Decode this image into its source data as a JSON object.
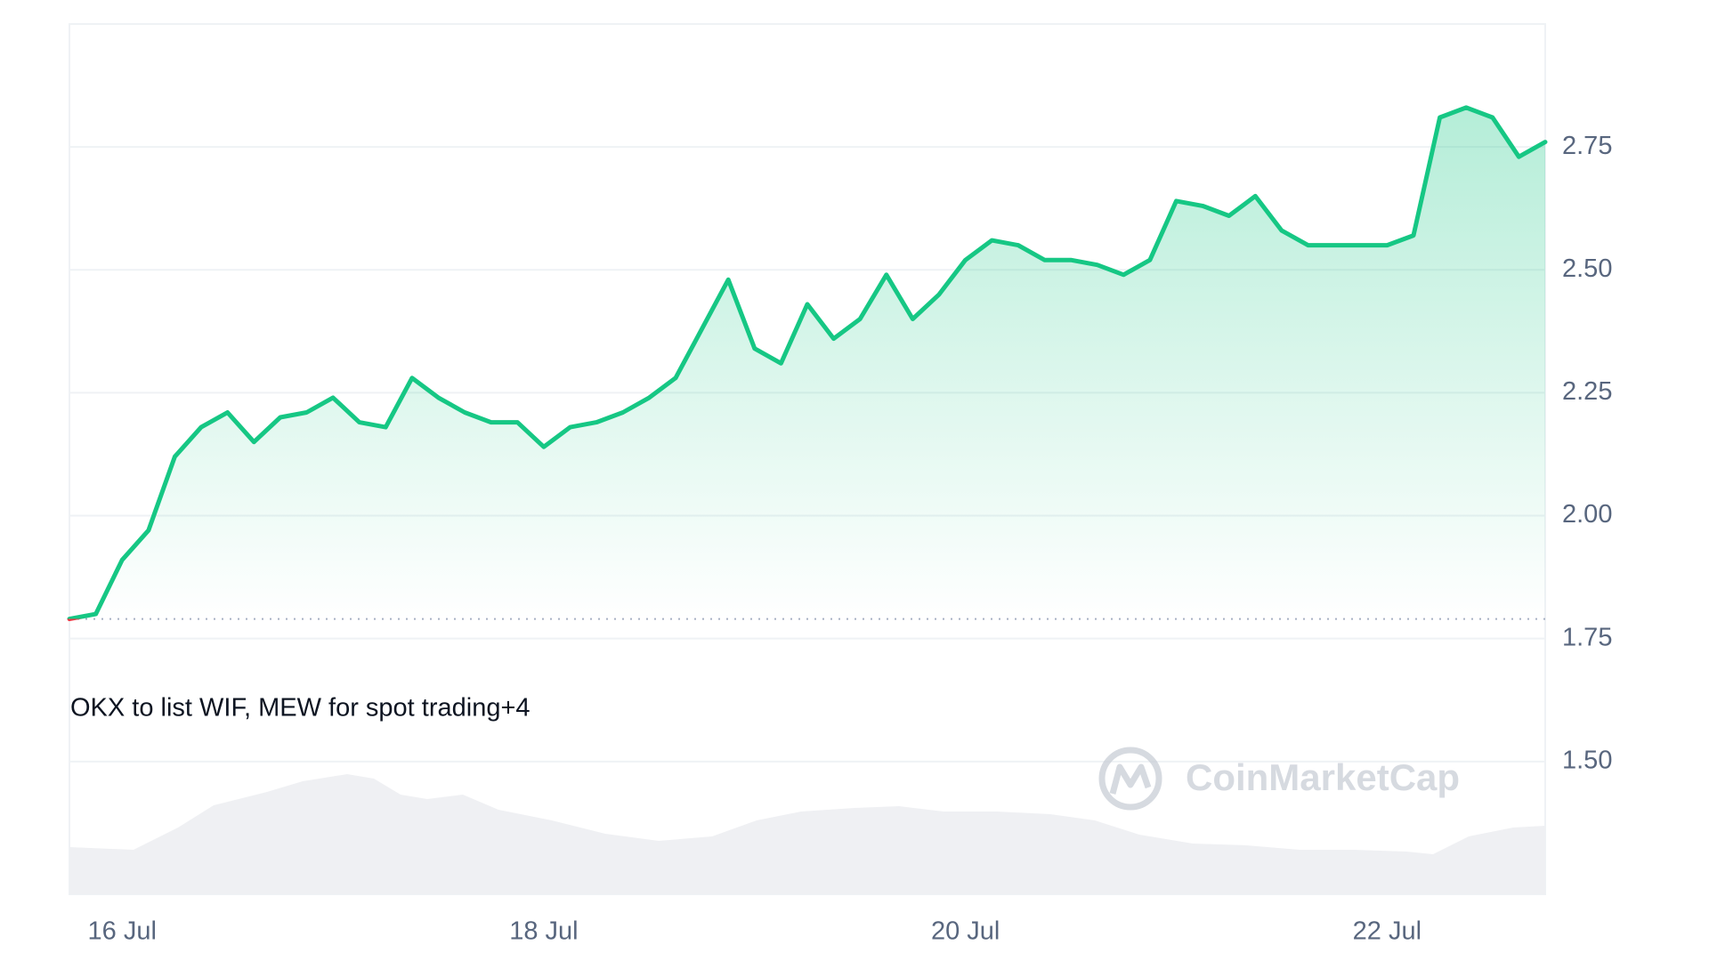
{
  "chart_data": {
    "type": "line",
    "annotation": "OKX to list WIF, MEW for spot trading+4",
    "watermark": "CoinMarketCap",
    "categories": [
      null,
      null,
      "16 Jul",
      null,
      null,
      null,
      null,
      null,
      null,
      null,
      null,
      null,
      null,
      null,
      null,
      null,
      null,
      null,
      "18 Jul",
      null,
      null,
      null,
      null,
      null,
      null,
      null,
      null,
      null,
      null,
      null,
      null,
      null,
      null,
      null,
      "20 Jul",
      null,
      null,
      null,
      null,
      null,
      null,
      null,
      null,
      null,
      null,
      null,
      null,
      null,
      null,
      null,
      "22 Jul",
      null,
      null,
      null,
      null,
      null,
      null
    ],
    "series": [
      {
        "color": "#16c784",
        "below_color": "#ea3943",
        "values": [
          1.79,
          1.8,
          1.91,
          1.97,
          2.12,
          2.18,
          2.21,
          2.15,
          2.2,
          2.21,
          2.24,
          2.19,
          2.18,
          2.28,
          2.24,
          2.21,
          2.19,
          2.19,
          2.14,
          2.18,
          2.19,
          2.21,
          2.24,
          2.28,
          2.38,
          2.48,
          2.34,
          2.31,
          2.43,
          2.36,
          2.4,
          2.49,
          2.4,
          2.45,
          2.52,
          2.56,
          2.55,
          2.52,
          2.52,
          2.51,
          2.49,
          2.52,
          2.64,
          2.63,
          2.61,
          2.65,
          2.58,
          2.55,
          2.55,
          2.55,
          2.55,
          2.57,
          2.81,
          2.83,
          2.81,
          2.73,
          2.76
        ]
      }
    ],
    "reference": 1.79,
    "ylim": [
      1.23,
      3.0
    ],
    "yticks": [
      {
        "value": 1.5,
        "label": "1.50"
      },
      1.75,
      {
        "value": 2.0,
        "label": "2.00"
      },
      2.25,
      {
        "value": 2.5,
        "label": "2.50"
      },
      2.75
    ],
    "grid": true
  }
}
